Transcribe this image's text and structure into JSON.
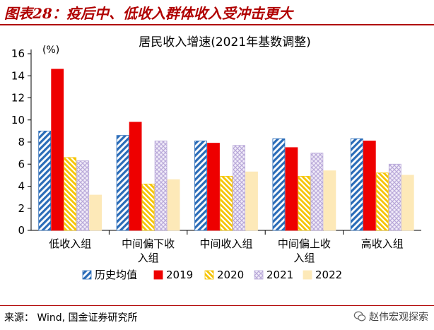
{
  "figure": {
    "label": "图表28：疫后中、低收入群体收入受冲击更大",
    "source": "来源： Wind, 国金证券研究所",
    "watermark": "赵伟宏观探索"
  },
  "colors": {
    "accent": "#b00000",
    "hist": "#2a6cb8",
    "y2019": "#ee0000",
    "y2020": "#f5c400",
    "y2021": "#b9a9d9",
    "y2022": "#fde9b8"
  },
  "chart_data": {
    "type": "bar",
    "title": "居民收入增速(2021年基数调整)",
    "ylabel": "(%)",
    "ylim": [
      0,
      16
    ],
    "yticks": [
      0,
      2,
      4,
      6,
      8,
      10,
      12,
      14,
      16
    ],
    "categories": [
      [
        "低收入组"
      ],
      [
        "中间偏下收",
        "入组"
      ],
      [
        "中间收入组"
      ],
      [
        "中间偏上收",
        "入组"
      ],
      [
        "高收入组"
      ]
    ],
    "series": [
      {
        "name": "历史均值",
        "values": [
          9.0,
          8.6,
          8.1,
          8.3,
          8.3
        ],
        "pattern": "hist"
      },
      {
        "name": "2019",
        "values": [
          14.6,
          9.8,
          7.9,
          7.5,
          8.1
        ],
        "pattern": "y2019"
      },
      {
        "name": "2020",
        "values": [
          6.6,
          4.2,
          4.9,
          4.9,
          5.2
        ],
        "pattern": "y2020"
      },
      {
        "name": "2021",
        "values": [
          6.3,
          8.1,
          7.7,
          7.0,
          6.0
        ],
        "pattern": "y2021"
      },
      {
        "name": "2022",
        "values": [
          3.2,
          4.6,
          5.3,
          5.4,
          5.0
        ],
        "pattern": "y2022"
      }
    ],
    "legend": "bottom",
    "grid": false
  }
}
